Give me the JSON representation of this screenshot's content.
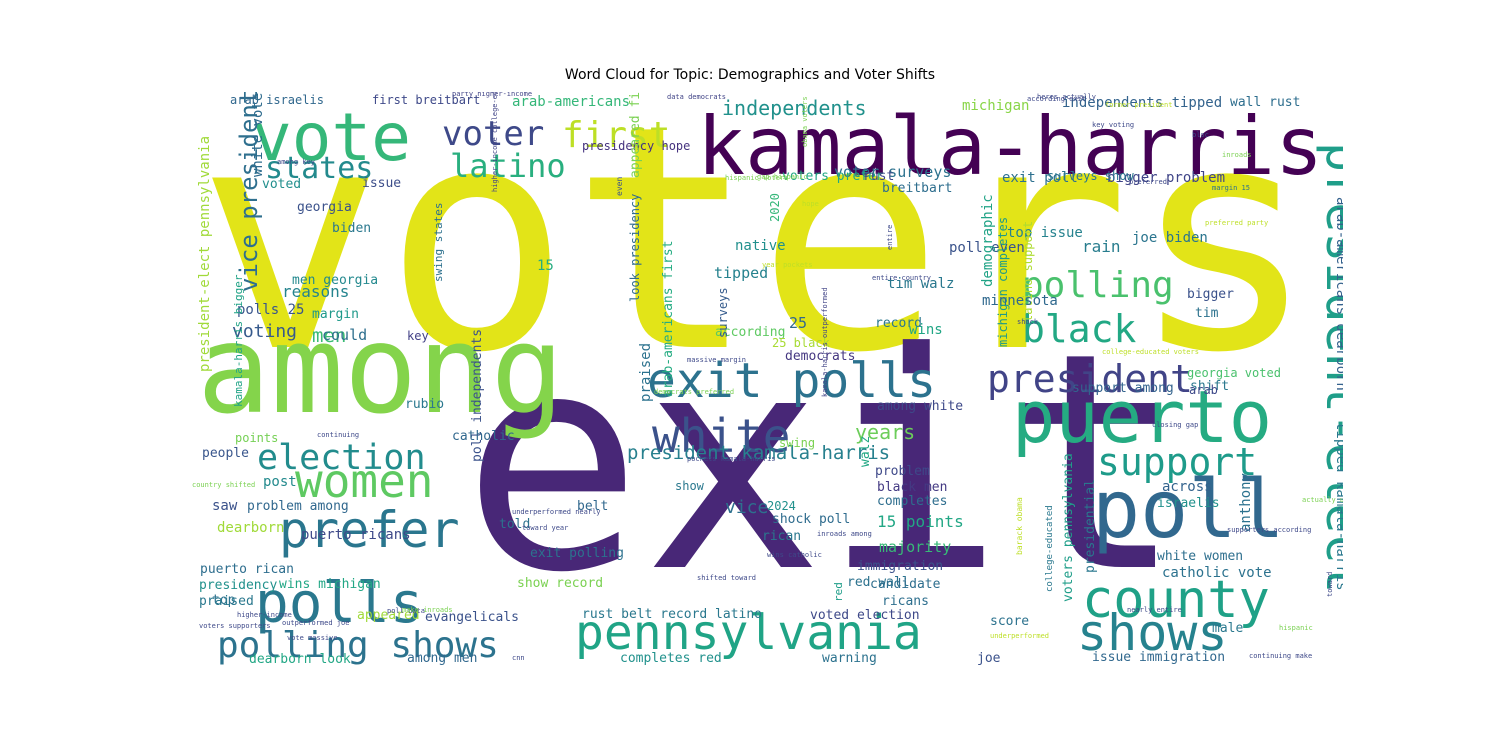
{
  "chart_data": {
    "type": "wordcloud",
    "title": "Word Cloud for Topic: Demographics and Voter Shifts",
    "colormap": "viridis",
    "background": "#ffffff",
    "words": [
      {
        "text": "voters",
        "weight": 1.0,
        "color": "#e2e418"
      },
      {
        "text": "exit",
        "weight": 0.98,
        "color": "#482777"
      },
      {
        "text": "among",
        "weight": 0.66,
        "color": "#84d44b"
      },
      {
        "text": "kamala-harris",
        "weight": 0.5,
        "color": "#440154"
      },
      {
        "text": "vote",
        "weight": 0.38,
        "color": "#35b779"
      },
      {
        "text": "puerto",
        "weight": 0.33,
        "color": "#25ab82"
      },
      {
        "text": "poll",
        "weight": 0.33,
        "color": "#31688e"
      },
      {
        "text": "president-elect",
        "weight": 0.27,
        "color": "#1f9e89"
      },
      {
        "text": "pennsylvania",
        "weight": 0.25,
        "color": "#20a486"
      },
      {
        "text": "exit polls",
        "weight": 0.25,
        "color": "#2c728e"
      },
      {
        "text": "white",
        "weight": 0.24,
        "color": "#3b528b"
      },
      {
        "text": "county",
        "weight": 0.24,
        "color": "#1fa187"
      },
      {
        "text": "polls",
        "weight": 0.24,
        "color": "#2a788e"
      },
      {
        "text": "shows",
        "weight": 0.23,
        "color": "#26828e"
      },
      {
        "text": "president",
        "weight": 0.21,
        "color": "#414487"
      },
      {
        "text": "first",
        "weight": 0.21,
        "color": "#bddf26"
      },
      {
        "text": "voter",
        "weight": 0.21,
        "color": "#3e4989"
      },
      {
        "text": "prefer",
        "weight": 0.21,
        "color": "#2a768e"
      },
      {
        "text": "women",
        "weight": 0.2,
        "color": "#5ec962"
      },
      {
        "text": "polling",
        "weight": 0.19,
        "color": "#4ac16d"
      },
      {
        "text": "black",
        "weight": 0.19,
        "color": "#22a884"
      },
      {
        "text": "polling shows",
        "weight": 0.18,
        "color": "#2c738e"
      },
      {
        "text": "support",
        "weight": 0.17,
        "color": "#1e9b8a"
      },
      {
        "text": "election",
        "weight": 0.17,
        "color": "#228c8d"
      },
      {
        "text": "latino",
        "weight": 0.16,
        "color": "#29af7f"
      },
      {
        "text": "states",
        "weight": 0.16,
        "color": "#238a8d"
      },
      {
        "text": "vice president",
        "weight": 0.11,
        "color": "#2e6f8e"
      },
      {
        "text": "independents",
        "weight": 0.1,
        "color": "#21918c"
      },
      {
        "text": "president kamala-harris",
        "weight": 0.1,
        "color": "#27808e"
      },
      {
        "text": "years",
        "weight": 0.1,
        "color": "#6ccd5a"
      },
      {
        "text": "arab-americans dearborn",
        "weight": 0.08,
        "color": "#34618d"
      },
      {
        "text": "president-elect pennsylvania",
        "weight": 0.08,
        "color": "#a0da39"
      },
      {
        "text": "tipped kamala-harris",
        "weight": 0.08,
        "color": "#2a788e"
      },
      {
        "text": "men",
        "weight": 0.09,
        "color": "#3bbb75"
      },
      {
        "text": "vice",
        "weight": 0.09,
        "color": "#2d708e"
      },
      {
        "text": "voting",
        "weight": 0.09,
        "color": "#375a8c"
      },
      {
        "text": "arab-americans",
        "weight": 0.07,
        "color": "#35b779"
      },
      {
        "text": "independents tipped",
        "weight": 0.07,
        "color": "#33638d"
      },
      {
        "text": "michigan",
        "weight": 0.07,
        "color": "#89d548"
      },
      {
        "text": "arab israelis",
        "weight": 0.06,
        "color": "#31688e"
      },
      {
        "text": "first breitbart",
        "weight": 0.06,
        "color": "#3e4989"
      },
      {
        "text": "wall rust",
        "weight": 0.06,
        "color": "#2e6e8e"
      },
      {
        "text": "voter surveys",
        "weight": 0.07,
        "color": "#2c728e"
      },
      {
        "text": "exit poll",
        "weight": 0.06,
        "color": "#2d708e"
      },
      {
        "text": "bigger problem",
        "weight": 0.06,
        "color": "#404588"
      },
      {
        "text": "top issue",
        "weight": 0.06,
        "color": "#26828e"
      },
      {
        "text": "joe biden",
        "weight": 0.06,
        "color": "#2b758e"
      },
      {
        "text": "poll even",
        "weight": 0.06,
        "color": "#3a538b"
      },
      {
        "text": "rain",
        "weight": 0.07,
        "color": "#287d8e"
      },
      {
        "text": "native",
        "weight": 0.06,
        "color": "#21908d"
      },
      {
        "text": "tipped",
        "weight": 0.07,
        "color": "#26828e"
      },
      {
        "text": "demographic",
        "weight": 0.06,
        "color": "#20a386"
      },
      {
        "text": "michigan completes",
        "weight": 0.05,
        "color": "#1f9a8a"
      },
      {
        "text": "latino support",
        "weight": 0.05,
        "color": "#addc30"
      },
      {
        "text": "minnesota",
        "weight": 0.06,
        "color": "#30698e"
      },
      {
        "text": "tim walz",
        "weight": 0.06,
        "color": "#2a788e"
      },
      {
        "text": "record",
        "weight": 0.05,
        "color": "#2a778e"
      },
      {
        "text": "wins",
        "weight": 0.06,
        "color": "#21a685"
      },
      {
        "text": "according",
        "weight": 0.05,
        "color": "#5ec962"
      },
      {
        "text": "bigger",
        "weight": 0.05,
        "color": "#3b528b"
      },
      {
        "text": "tim",
        "weight": 0.05,
        "color": "#2c728e"
      },
      {
        "text": "25",
        "weight": 0.06,
        "color": "#31688e"
      },
      {
        "text": "25 black",
        "weight": 0.05,
        "color": "#a8db34"
      },
      {
        "text": "democrats",
        "weight": 0.05,
        "color": "#453781"
      },
      {
        "text": "could",
        "weight": 0.06,
        "color": "#2e6f8e"
      },
      {
        "text": "reasons",
        "weight": 0.06,
        "color": "#25848e"
      },
      {
        "text": "men georgia",
        "weight": 0.05,
        "color": "#23898e"
      },
      {
        "text": "15",
        "weight": 0.05,
        "color": "#27ad81"
      },
      {
        "text": "polls 25",
        "weight": 0.05,
        "color": "#39568c"
      },
      {
        "text": "margin",
        "weight": 0.05,
        "color": "#1f998a"
      },
      {
        "text": "key",
        "weight": 0.05,
        "color": "#424086"
      },
      {
        "text": "white voters",
        "weight": 0.05,
        "color": "#2f6c8e"
      },
      {
        "text": "voted",
        "weight": 0.05,
        "color": "#218f8d"
      },
      {
        "text": "issue",
        "weight": 0.05,
        "color": "#3d4e8a"
      },
      {
        "text": "georgia",
        "weight": 0.05,
        "color": "#3b528b"
      },
      {
        "text": "biden",
        "weight": 0.05,
        "color": "#2a788e"
      },
      {
        "text": "kamala-harris bigger",
        "weight": 0.04,
        "color": "#20a386"
      },
      {
        "text": "swing states",
        "weight": 0.05,
        "color": "#2d718e"
      },
      {
        "text": "presidency hope",
        "weight": 0.05,
        "color": "#46337f"
      },
      {
        "text": "appeared first",
        "weight": 0.06,
        "color": "#7ad151"
      },
      {
        "text": "look presidency",
        "weight": 0.05,
        "color": "#2f6c8e"
      },
      {
        "text": "surveys",
        "weight": 0.05,
        "color": "#365c8d"
      },
      {
        "text": "2020",
        "weight": 0.05,
        "color": "#35b779"
      },
      {
        "text": "voters prefer",
        "weight": 0.05,
        "color": "#22a785"
      },
      {
        "text": "rust",
        "weight": 0.05,
        "color": "#3f4788"
      },
      {
        "text": "breitbart",
        "weight": 0.05,
        "color": "#2e6e8e"
      },
      {
        "text": "surveys show",
        "weight": 0.04,
        "color": "#2a778e"
      },
      {
        "text": "arab-americans first",
        "weight": 0.05,
        "color": "#25ac82"
      },
      {
        "text": "praised",
        "weight": 0.06,
        "color": "#2c728e"
      },
      {
        "text": "among white",
        "weight": 0.05,
        "color": "#3e4989"
      },
      {
        "text": "support among",
        "weight": 0.05,
        "color": "#33638d"
      },
      {
        "text": "shift",
        "weight": 0.05,
        "color": "#2a788e"
      },
      {
        "text": "georgia voted",
        "weight": 0.04,
        "color": "#4ac16d"
      },
      {
        "text": "arab",
        "weight": 0.04,
        "color": "#3e4989"
      },
      {
        "text": "swing",
        "weight": 0.04,
        "color": "#7ad151"
      },
      {
        "text": "walz",
        "weight": 0.05,
        "color": "#22a884"
      },
      {
        "text": "points",
        "weight": 0.05,
        "color": "#75d054"
      },
      {
        "text": "poll independents",
        "weight": 0.05,
        "color": "#3b528b"
      },
      {
        "text": "catholic",
        "weight": 0.05,
        "color": "#31688e"
      },
      {
        "text": "rubio",
        "weight": 0.05,
        "color": "#2a788e"
      },
      {
        "text": "people",
        "weight": 0.05,
        "color": "#39568c"
      },
      {
        "text": "post",
        "weight": 0.05,
        "color": "#238a8d"
      },
      {
        "text": "show",
        "weight": 0.04,
        "color": "#2a788e"
      },
      {
        "text": "problem",
        "weight": 0.05,
        "color": "#3e4989"
      },
      {
        "text": "black men",
        "weight": 0.05,
        "color": "#443a83"
      },
      {
        "text": "completes",
        "weight": 0.05,
        "color": "#2e6e8e"
      },
      {
        "text": "2024",
        "weight": 0.05,
        "color": "#21918c"
      },
      {
        "text": "shock poll",
        "weight": 0.05,
        "color": "#2f6c8e"
      },
      {
        "text": "15 points",
        "weight": 0.06,
        "color": "#22a785"
      },
      {
        "text": "across",
        "weight": 0.05,
        "color": "#33638d"
      },
      {
        "text": "israelis",
        "weight": 0.05,
        "color": "#21918c"
      },
      {
        "text": "anthony",
        "weight": 0.05,
        "color": "#2c728e"
      },
      {
        "text": "voters pennsylvania",
        "weight": 0.05,
        "color": "#1f9e89"
      },
      {
        "text": "presidential",
        "weight": 0.05,
        "color": "#2a778e"
      },
      {
        "text": "saw",
        "weight": 0.05,
        "color": "#3b528b"
      },
      {
        "text": "problem among",
        "weight": 0.05,
        "color": "#31688e"
      },
      {
        "text": "dearborn",
        "weight": 0.05,
        "color": "#a0da39"
      },
      {
        "text": "told",
        "weight": 0.05,
        "color": "#2c728e"
      },
      {
        "text": "majority",
        "weight": 0.06,
        "color": "#38b977"
      },
      {
        "text": "rican",
        "weight": 0.05,
        "color": "#2a788e"
      },
      {
        "text": "white women",
        "weight": 0.05,
        "color": "#2e6f8e"
      },
      {
        "text": "catholic vote",
        "weight": 0.06,
        "color": "#2c728e"
      },
      {
        "text": "puerto ricans",
        "weight": 0.05,
        "color": "#3e4989"
      },
      {
        "text": "exit polling",
        "weight": 0.05,
        "color": "#2c728e"
      },
      {
        "text": "immigration",
        "weight": 0.05,
        "color": "#3b528b"
      },
      {
        "text": "puerto rican",
        "weight": 0.05,
        "color": "#2e6e8e"
      },
      {
        "text": "show record",
        "weight": 0.05,
        "color": "#7ad151"
      },
      {
        "text": "presidency",
        "weight": 0.05,
        "color": "#21918c"
      },
      {
        "text": "wins michigan",
        "weight": 0.05,
        "color": "#22a785"
      },
      {
        "text": "red wall",
        "weight": 0.05,
        "color": "#2c728e"
      },
      {
        "text": "red",
        "weight": 0.04,
        "color": "#1f9e89"
      },
      {
        "text": "candidate",
        "weight": 0.05,
        "color": "#2e6e8e"
      },
      {
        "text": "top",
        "weight": 0.05,
        "color": "#2c728e"
      },
      {
        "text": "praised",
        "weight": 0.05,
        "color": "#2a788e"
      },
      {
        "text": "ricans",
        "weight": 0.05,
        "color": "#2e6f8e"
      },
      {
        "text": "rust belt record latino",
        "weight": 0.05,
        "color": "#2a788e"
      },
      {
        "text": "voted election",
        "weight": 0.05,
        "color": "#3e4989"
      },
      {
        "text": "appeared",
        "weight": 0.05,
        "color": "#a0da39"
      },
      {
        "text": "evangelicals",
        "weight": 0.05,
        "color": "#3b528b"
      },
      {
        "text": "score",
        "weight": 0.05,
        "color": "#2c728e"
      },
      {
        "text": "male",
        "weight": 0.05,
        "color": "#2a788e"
      },
      {
        "text": "dearborn look",
        "weight": 0.05,
        "color": "#22a785"
      },
      {
        "text": "among men",
        "weight": 0.05,
        "color": "#31688e"
      },
      {
        "text": "completes red",
        "weight": 0.05,
        "color": "#21918c"
      },
      {
        "text": "warning",
        "weight": 0.05,
        "color": "#2c728e"
      },
      {
        "text": "joe",
        "weight": 0.05,
        "color": "#3b528b"
      },
      {
        "text": "issue immigration",
        "weight": 0.05,
        "color": "#31688e"
      },
      {
        "text": "belt",
        "weight": 0.05,
        "color": "#31688e"
      },
      {
        "text": "college-educated",
        "weight": 0.03,
        "color": "#2a788e"
      },
      {
        "text": "higher-income college-educated",
        "weight": 0.02,
        "color": "#414487"
      },
      {
        "text": "barack obama",
        "weight": 0.02,
        "color": "#bddf26"
      },
      {
        "text": "even",
        "weight": 0.02,
        "color": "#3b528b"
      },
      {
        "text": "data democrats",
        "weight": 0.02,
        "color": "#414487"
      },
      {
        "text": "party higher-income",
        "weight": 0.02,
        "color": "#414487"
      },
      {
        "text": "according exit",
        "weight": 0.02,
        "color": "#3e4989"
      },
      {
        "text": "former president",
        "weight": 0.02,
        "color": "#bddf26"
      },
      {
        "text": "key voting",
        "weight": 0.02,
        "color": "#3e4989"
      },
      {
        "text": "bloc",
        "weight": 0.02,
        "color": "#3e4989"
      },
      {
        "text": "obama voters",
        "weight": 0.02,
        "color": "#7ad151"
      },
      {
        "text": "gap hispanic",
        "weight": 0.02,
        "color": "#7ad151"
      },
      {
        "text": "among key",
        "weight": 0.02,
        "color": "#3e4989"
      },
      {
        "text": "hispanic voters",
        "weight": 0.02,
        "color": "#7ad151"
      },
      {
        "text": "margin 15",
        "weight": 0.02,
        "color": "#2c728e"
      },
      {
        "text": "preferred",
        "weight": 0.02,
        "color": "#3e4989"
      },
      {
        "text": "preferred party",
        "weight": 0.02,
        "color": "#bddf26"
      },
      {
        "text": "inroads",
        "weight": 0.02,
        "color": "#7ad151"
      },
      {
        "text": "hope",
        "weight": 0.02,
        "color": "#bddf26"
      },
      {
        "text": "year pockets",
        "weight": 0.02,
        "color": "#bddf26"
      },
      {
        "text": "entire country",
        "weight": 0.02,
        "color": "#3e4989"
      },
      {
        "text": "entire",
        "weight": 0.02,
        "color": "#3e4989"
      },
      {
        "text": "heres actually",
        "weight": 0.02,
        "color": "#3e4989"
      },
      {
        "text": "college-educated voters",
        "weight": 0.02,
        "color": "#bddf26"
      },
      {
        "text": "shock",
        "weight": 0.02,
        "color": "#3e4989"
      },
      {
        "text": "massive margin",
        "weight": 0.02,
        "color": "#3e4989"
      },
      {
        "text": "democrats preferred",
        "weight": 0.02,
        "color": "#7ad151"
      },
      {
        "text": "kamala-harris outperformed",
        "weight": 0.02,
        "color": "#414487"
      },
      {
        "text": "closing gap",
        "weight": 0.02,
        "color": "#3e4989"
      },
      {
        "text": "continuing",
        "weight": 0.02,
        "color": "#3e4989"
      },
      {
        "text": "country shifted",
        "weight": 0.02,
        "color": "#7ad151"
      },
      {
        "text": "pockets kamala-harris",
        "weight": 0.02,
        "color": "#3e4989"
      },
      {
        "text": "underperformed nearly",
        "weight": 0.02,
        "color": "#3e4989"
      },
      {
        "text": "toward year",
        "weight": 0.02,
        "color": "#3e4989"
      },
      {
        "text": "inroads among",
        "weight": 0.02,
        "color": "#3e4989"
      },
      {
        "text": "wins catholic",
        "weight": 0.02,
        "color": "#3e4989"
      },
      {
        "text": "shifted toward",
        "weight": 0.02,
        "color": "#3e4989"
      },
      {
        "text": "poll data",
        "weight": 0.02,
        "color": "#3e4989"
      },
      {
        "text": "make inroads",
        "weight": 0.02,
        "color": "#7ad151"
      },
      {
        "text": "higher-income",
        "weight": 0.02,
        "color": "#3e4989"
      },
      {
        "text": "outperformed joe",
        "weight": 0.02,
        "color": "#3e4989"
      },
      {
        "text": "voters supporters",
        "weight": 0.02,
        "color": "#3e4989"
      },
      {
        "text": "vote massive",
        "weight": 0.02,
        "color": "#3e4989"
      },
      {
        "text": "cnn",
        "weight": 0.02,
        "color": "#3e4989"
      },
      {
        "text": "underperformed",
        "weight": 0.02,
        "color": "#bddf26"
      },
      {
        "text": "nearly entire",
        "weight": 0.02,
        "color": "#3e4989"
      },
      {
        "text": "supporters according",
        "weight": 0.02,
        "color": "#3e4989"
      },
      {
        "text": "hispanic",
        "weight": 0.02,
        "color": "#7ad151"
      },
      {
        "text": "continuing make",
        "weight": 0.02,
        "color": "#3e4989"
      },
      {
        "text": "toward",
        "weight": 0.02,
        "color": "#3e4989"
      },
      {
        "text": "actually underperformed",
        "weight": 0.02,
        "color": "#7ad151"
      },
      {
        "text": "wall",
        "weight": 0.02,
        "color": "#3e4989"
      }
    ]
  }
}
